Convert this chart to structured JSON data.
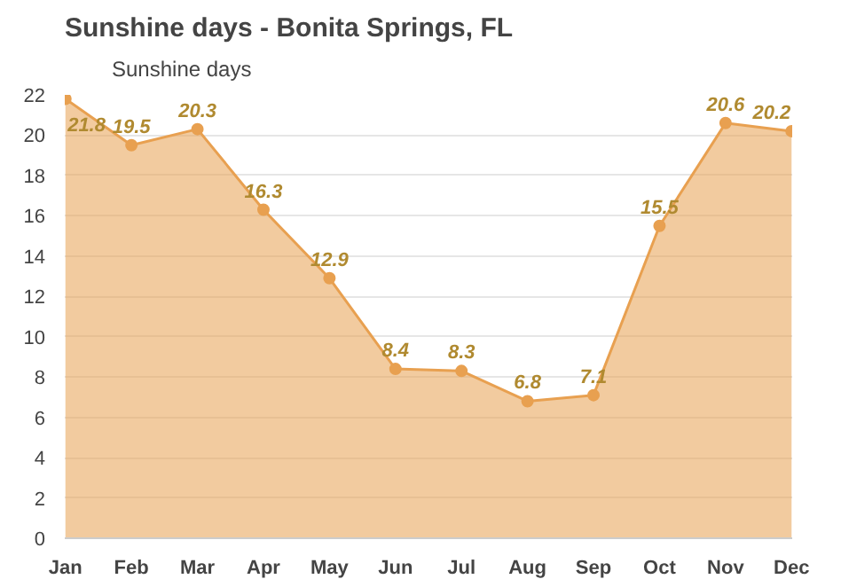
{
  "chart_data": {
    "type": "area",
    "title": "Sunshine days - Bonita Springs, FL",
    "categories": [
      "Jan",
      "Feb",
      "Mar",
      "Apr",
      "May",
      "Jun",
      "Jul",
      "Aug",
      "Sep",
      "Oct",
      "Nov",
      "Dec"
    ],
    "series": [
      {
        "name": "Sunshine days",
        "color": "#e8a050",
        "values": [
          21.8,
          19.5,
          20.3,
          16.3,
          12.9,
          8.4,
          8.3,
          6.8,
          7.1,
          15.5,
          20.6,
          20.2
        ]
      }
    ],
    "ylim": [
      0,
      22
    ],
    "yticks": [
      0,
      2,
      4,
      6,
      8,
      10,
      12,
      14,
      16,
      18,
      20,
      22
    ],
    "grid": "y",
    "legend": "top left",
    "marker": "circle",
    "data_labels": true
  }
}
